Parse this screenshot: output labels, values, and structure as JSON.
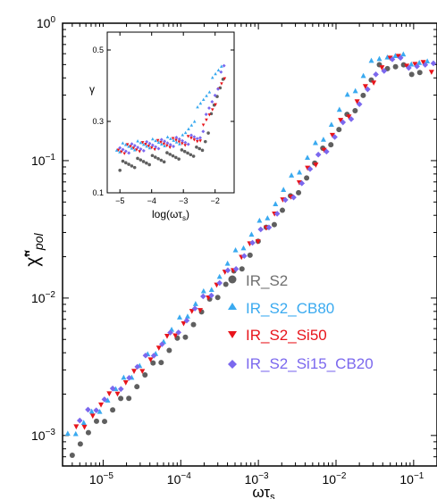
{
  "chart_data": {
    "type": "scatter",
    "title": "",
    "xlabel": "ωτ",
    "xlabel_sub": "s",
    "ylabel": "χ̃\"",
    "ylabel_sub": "pol",
    "x_scale": "log",
    "y_scale": "log",
    "xlim": [
      3e-06,
      0.2
    ],
    "ylim": [
      0.0006,
      1
    ],
    "x_ticks": [
      1e-05,
      0.0001,
      0.001,
      0.01,
      0.1
    ],
    "x_tick_labels": [
      {
        "base": "10",
        "exp": "−5"
      },
      {
        "base": "10",
        "exp": "−4"
      },
      {
        "base": "10",
        "exp": "−3"
      },
      {
        "base": "10",
        "exp": "−2"
      },
      {
        "base": "10",
        "exp": "−1"
      }
    ],
    "y_ticks": [
      0.001,
      0.01,
      0.1,
      1
    ],
    "y_tick_labels": [
      {
        "base": "10",
        "exp": "−3"
      },
      {
        "base": "10",
        "exp": "−2"
      },
      {
        "base": "10",
        "exp": "−1"
      },
      {
        "base": "10",
        "exp": "0"
      }
    ],
    "grid": false,
    "legend_position": "lower-right",
    "series": [
      {
        "name": "IR_S2",
        "marker": "circle",
        "color": "#5f5f5f",
        "x_start": 4e-06,
        "x_end": 0.12,
        "points": 44,
        "y_start": 0.00078,
        "peak_x": 0.04,
        "peak_y": 0.5,
        "offset_x": 1.0,
        "end_y": 0.45
      },
      {
        "name": "IR_S2_CB80",
        "marker": "triangle-up",
        "color": "#3aaaf0",
        "x_start": 3.5e-06,
        "x_end": 0.15,
        "points": 46,
        "y_start": 0.00095,
        "peak_x": 0.035,
        "peak_y": 0.6,
        "offset_x": 0.82,
        "end_y": 0.5
      },
      {
        "name": "IR_S2_Si50",
        "marker": "triangle-down",
        "color": "#e8141b",
        "x_start": 4.5e-06,
        "x_end": 0.17,
        "points": 44,
        "y_start": 0.0011,
        "peak_x": 0.045,
        "peak_y": 0.55,
        "offset_x": 0.88,
        "end_y": 0.48
      },
      {
        "name": "IR_S2_Si15_CB20",
        "marker": "diamond",
        "color": "#7b68ee",
        "x_start": 5e-06,
        "x_end": 0.18,
        "points": 44,
        "y_start": 0.00125,
        "peak_x": 0.05,
        "peak_y": 0.55,
        "offset_x": 0.92,
        "end_y": 0.47
      }
    ],
    "inset": {
      "type": "scatter",
      "xlabel": "log(ωτ",
      "xlabel_sub": "s",
      "xlabel_end": ")",
      "ylabel": "γ",
      "xlim": [
        -5.4,
        -1.4
      ],
      "ylim": [
        0.1,
        0.55
      ],
      "x_ticks": [
        -5,
        -4,
        -3,
        -2
      ],
      "x_tick_labels": [
        "−5",
        "−4",
        "−3",
        "−2"
      ],
      "y_ticks": [
        0.1,
        0.3,
        0.5
      ],
      "y_tick_labels": [
        "0.1",
        "0.3",
        "0.5"
      ],
      "series": [
        {
          "name": "IR_S2",
          "color": "#5f5f5f",
          "marker": "circle",
          "x_start": -5.0,
          "x_end": -1.75,
          "points": 36,
          "y_base": 0.175,
          "y_slope": 0.017,
          "knee": -2.4,
          "y_end": 0.43
        },
        {
          "name": "IR_S2_CB80",
          "color": "#3aaaf0",
          "marker": "triangle-up",
          "x_start": -5.1,
          "x_end": -1.8,
          "points": 36,
          "y_base": 0.225,
          "y_slope": 0.012,
          "knee": -3.0,
          "y_end": 0.46
        },
        {
          "name": "IR_S2_Si50",
          "color": "#e8141b",
          "marker": "triangle-down",
          "x_start": -5.05,
          "x_end": -1.7,
          "points": 36,
          "y_base": 0.22,
          "y_slope": 0.012,
          "knee": -2.5,
          "y_end": 0.42
        },
        {
          "name": "IR_S2_Si15_CB20",
          "color": "#7b68ee",
          "marker": "diamond",
          "x_start": -5.0,
          "x_end": -1.72,
          "points": 36,
          "y_base": 0.22,
          "y_slope": 0.013,
          "knee": -2.5,
          "y_end": 0.45
        }
      ]
    }
  }
}
